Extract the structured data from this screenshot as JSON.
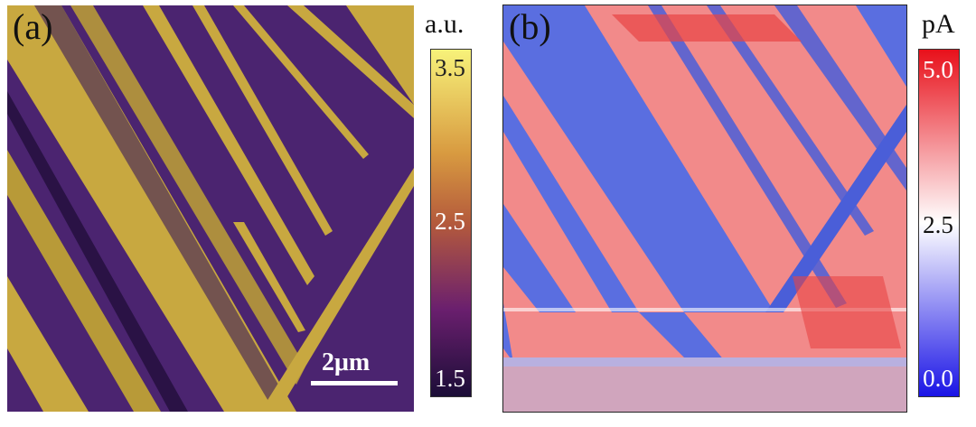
{
  "panel_a": {
    "label": "(a)",
    "scale_bar": "2μm",
    "colorbar": {
      "unit": "a.u.",
      "ticks": [
        "3.5",
        "2.5",
        "1.5"
      ],
      "colors": {
        "high": "#f7f27a",
        "mid": "#b45a3c",
        "low": "#1b0d37"
      }
    }
  },
  "panel_b": {
    "label": "(b)",
    "colorbar": {
      "unit": "pA",
      "ticks": [
        "5.0",
        "2.5",
        "0.0"
      ],
      "colors": {
        "high": "#e8101a",
        "mid": "#ffffff",
        "low": "#1a14e6"
      }
    }
  }
}
